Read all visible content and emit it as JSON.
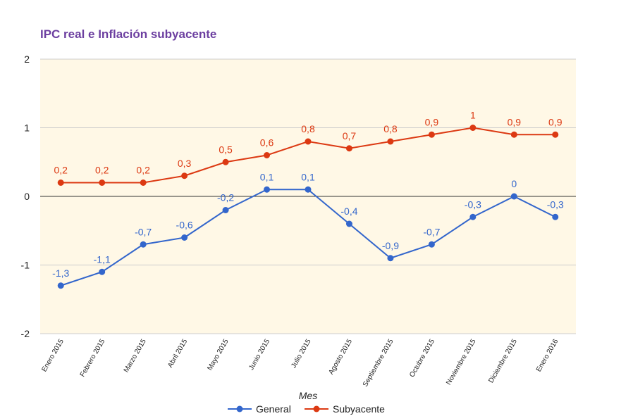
{
  "chart_data": {
    "type": "line",
    "title": "IPC real e Inflación subyacente",
    "xlabel": "Mes",
    "ylabel": "",
    "ylim": [
      -2,
      2
    ],
    "yticks": [
      {
        "value": 2,
        "label": "2"
      },
      {
        "value": 1,
        "label": "1"
      },
      {
        "value": 0,
        "label": "0"
      },
      {
        "value": -1,
        "label": "-1"
      },
      {
        "value": -2,
        "label": "-2"
      }
    ],
    "grid": true,
    "legend_position": "bottom",
    "categories": [
      "Enero 2015",
      "Febrero 2015",
      "Marzo 2015",
      "Abril 2015",
      "Mayo 2015",
      "Junio 2015",
      "Julio 2015",
      "Agosto 2015",
      "Septiembre 2015",
      "Octubre 2015",
      "Noviembre 2015",
      "Diciembre 2015",
      "Enero 2016"
    ],
    "series": [
      {
        "name": "General",
        "color": "#3366cc",
        "values": [
          -1.3,
          -1.1,
          -0.7,
          -0.6,
          -0.2,
          0.1,
          0.1,
          -0.4,
          -0.9,
          -0.7,
          -0.3,
          0,
          -0.3
        ],
        "labels": [
          "-1,3",
          "-1,1",
          "-0,7",
          "-0,6",
          "-0,2",
          "0,1",
          "0,1",
          "-0,4",
          "-0,9",
          "-0,7",
          "-0,3",
          "0",
          "-0,3"
        ]
      },
      {
        "name": "Subyacente",
        "color": "#dc3912",
        "values": [
          0.2,
          0.2,
          0.2,
          0.3,
          0.5,
          0.6,
          0.8,
          0.7,
          0.8,
          0.9,
          1,
          0.9,
          0.9
        ],
        "labels": [
          "0,2",
          "0,2",
          "0,2",
          "0,3",
          "0,5",
          "0,6",
          "0,8",
          "0,7",
          "0,8",
          "0,9",
          "1",
          "0,9",
          "0,9"
        ]
      }
    ],
    "colors": {
      "title": "#6c3fa0",
      "plot_background": "#fff8e6",
      "gridline": "#cccccc",
      "zero_line": "#333333"
    }
  }
}
